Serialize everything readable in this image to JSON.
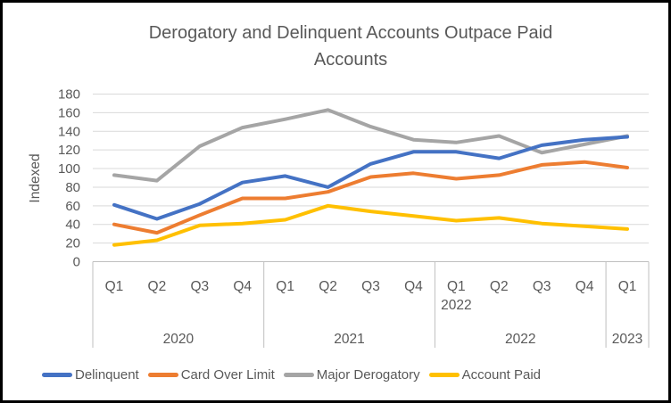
{
  "frame": {
    "background": "#ffffff",
    "border_color": "#000000"
  },
  "title_lines": [
    "Derogatory and Delinquent Accounts Outpace Paid",
    "Accounts"
  ],
  "chart_data": {
    "type": "line",
    "title": "Derogatory and Delinquent Accounts Outpace Paid Accounts",
    "xlabel": "",
    "ylabel": "Indexed",
    "ylim": [
      0,
      180
    ],
    "ytick_step": 20,
    "yticks": [
      0,
      20,
      40,
      60,
      80,
      100,
      120,
      140,
      160,
      180
    ],
    "grid": true,
    "legend_position": "bottom",
    "categories": [
      "Q1",
      "Q2",
      "Q3",
      "Q4",
      "Q1",
      "Q2",
      "Q3",
      "Q4",
      "Q1 2022",
      "Q2",
      "Q3",
      "Q4",
      "Q1"
    ],
    "year_groups": [
      {
        "label": "2020",
        "span": 4
      },
      {
        "label": "2021",
        "span": 4
      },
      {
        "label": "2022",
        "span": 4
      },
      {
        "label": "2023",
        "span": 1
      }
    ],
    "series": [
      {
        "name": "Delinquent",
        "color": "#4472C4",
        "values": [
          61,
          46,
          62,
          85,
          92,
          80,
          105,
          118,
          118,
          111,
          125,
          131,
          134
        ]
      },
      {
        "name": "Card Over Limit",
        "color": "#ED7D31",
        "values": [
          40,
          31,
          50,
          68,
          68,
          75,
          91,
          95,
          89,
          93,
          104,
          107,
          101
        ]
      },
      {
        "name": "Major Derogatory",
        "color": "#A5A5A5",
        "values": [
          93,
          87,
          124,
          144,
          153,
          163,
          145,
          131,
          128,
          135,
          117,
          126,
          135
        ]
      },
      {
        "name": "Account Paid",
        "color": "#FFC000",
        "values": [
          18,
          23,
          39,
          41,
          45,
          60,
          54,
          49,
          44,
          47,
          41,
          38,
          35
        ]
      }
    ],
    "colors": {
      "axis_text": "#595959",
      "gridline": "#D9D9D9",
      "axis_line": "#BFBFBF",
      "title_text": "#595959"
    }
  }
}
